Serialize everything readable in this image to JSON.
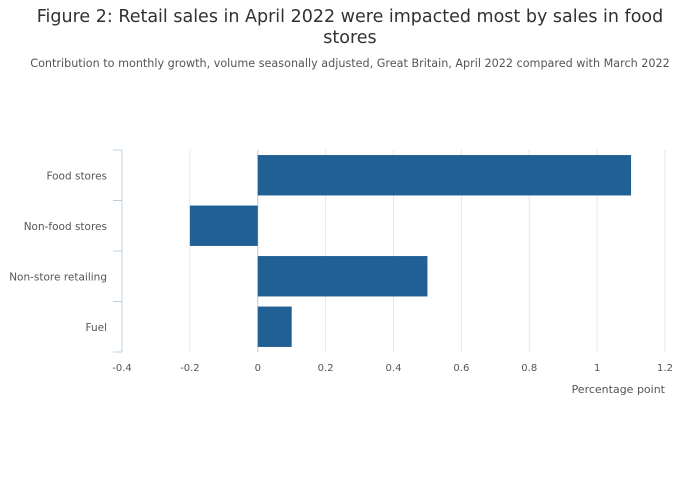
{
  "chart_data": {
    "type": "bar",
    "orientation": "horizontal",
    "title": "Figure 2: Retail sales in April 2022 were impacted most by sales in food stores",
    "subtitle": "Contribution to monthly growth, volume seasonally adjusted, Great Britain, April 2022 compared with March 2022",
    "categories": [
      "Food stores",
      "Non-food stores",
      "Non-store retailing",
      "Fuel"
    ],
    "values": [
      1.1,
      -0.2,
      0.5,
      0.1
    ],
    "xlabel": "Percentage point",
    "ylabel": "",
    "xlim": [
      -0.4,
      1.2
    ],
    "xticks": [
      "-0.4",
      "-0.2",
      "0",
      "0.2",
      "0.4",
      "0.6",
      "0.8",
      "1",
      "1.2"
    ],
    "grid": true,
    "legend": "none",
    "bar_color": "#206095",
    "grid_color": "#e6e6e6",
    "axis_color": "#bcd0e0"
  }
}
